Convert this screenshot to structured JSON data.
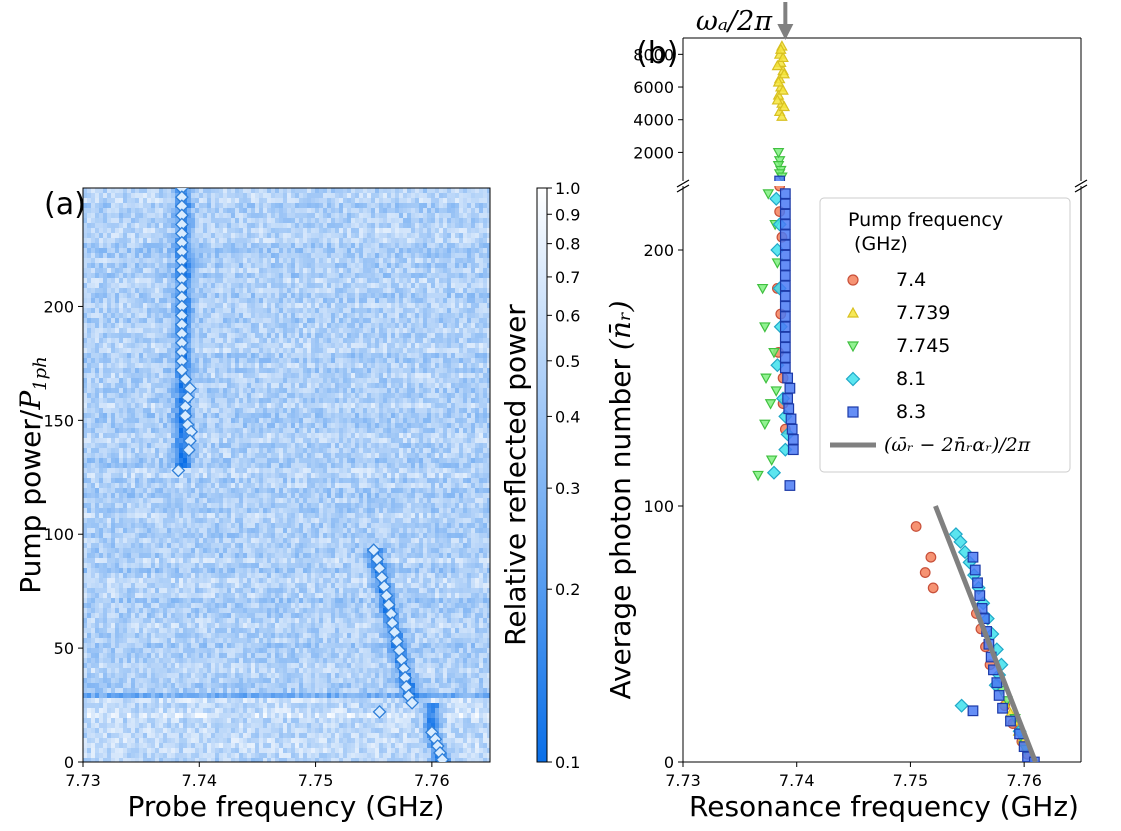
{
  "chart_data": [
    {
      "panel_label": "(a)",
      "type": "heatmap",
      "xlabel": "Probe frequency (GHz)",
      "ylabel_prefix": "Pump power/",
      "ylabel_math": "P",
      "ylabel_sub": "1ph",
      "xlim": [
        7.73,
        7.765
      ],
      "ylim": [
        0,
        252
      ],
      "xticks": [
        "7.73",
        "7.74",
        "7.75",
        "7.76"
      ],
      "xtick_values": [
        7.73,
        7.74,
        7.75,
        7.76
      ],
      "yticks": [
        "0",
        "50",
        "100",
        "150",
        "200"
      ],
      "ytick_values": [
        0,
        50,
        100,
        150,
        200
      ],
      "colorbar": {
        "label": "Relative reflected power",
        "scale": "log",
        "range": [
          0.1,
          1.0
        ],
        "ticks": [
          "0.1",
          "0.2",
          "0.3",
          "0.4",
          "0.5",
          "0.6",
          "0.7",
          "0.8",
          "0.9",
          "1.0"
        ],
        "tick_values": [
          0.1,
          0.2,
          0.3,
          0.4,
          0.5,
          0.6,
          0.7,
          0.8,
          0.9,
          1.0
        ],
        "color_low": "#0a6fe8",
        "color_high": "#ffffff"
      },
      "resonance_markers": [
        {
          "x": 7.7385,
          "y": 252
        },
        {
          "x": 7.7385,
          "y": 248
        },
        {
          "x": 7.7385,
          "y": 244
        },
        {
          "x": 7.7385,
          "y": 240
        },
        {
          "x": 7.7385,
          "y": 236
        },
        {
          "x": 7.7385,
          "y": 232
        },
        {
          "x": 7.7385,
          "y": 228
        },
        {
          "x": 7.7385,
          "y": 224
        },
        {
          "x": 7.7385,
          "y": 220
        },
        {
          "x": 7.7385,
          "y": 216
        },
        {
          "x": 7.7385,
          "y": 212
        },
        {
          "x": 7.7385,
          "y": 208
        },
        {
          "x": 7.7385,
          "y": 204
        },
        {
          "x": 7.7385,
          "y": 200
        },
        {
          "x": 7.7385,
          "y": 196
        },
        {
          "x": 7.7385,
          "y": 192
        },
        {
          "x": 7.7385,
          "y": 188
        },
        {
          "x": 7.7385,
          "y": 184
        },
        {
          "x": 7.7385,
          "y": 180
        },
        {
          "x": 7.7385,
          "y": 176
        },
        {
          "x": 7.7385,
          "y": 172
        },
        {
          "x": 7.7388,
          "y": 168
        },
        {
          "x": 7.7392,
          "y": 164
        },
        {
          "x": 7.739,
          "y": 160
        },
        {
          "x": 7.7388,
          "y": 156
        },
        {
          "x": 7.7388,
          "y": 152
        },
        {
          "x": 7.739,
          "y": 148
        },
        {
          "x": 7.7393,
          "y": 145
        },
        {
          "x": 7.7392,
          "y": 141
        },
        {
          "x": 7.7391,
          "y": 137
        },
        {
          "x": 7.7382,
          "y": 128
        },
        {
          "x": 7.755,
          "y": 93
        },
        {
          "x": 7.7553,
          "y": 89
        },
        {
          "x": 7.7555,
          "y": 85
        },
        {
          "x": 7.7557,
          "y": 81
        },
        {
          "x": 7.7559,
          "y": 77
        },
        {
          "x": 7.7561,
          "y": 73
        },
        {
          "x": 7.7563,
          "y": 69
        },
        {
          "x": 7.7565,
          "y": 65
        },
        {
          "x": 7.7566,
          "y": 61
        },
        {
          "x": 7.7568,
          "y": 57
        },
        {
          "x": 7.757,
          "y": 53
        },
        {
          "x": 7.7572,
          "y": 49
        },
        {
          "x": 7.7574,
          "y": 45
        },
        {
          "x": 7.7576,
          "y": 41
        },
        {
          "x": 7.7577,
          "y": 37
        },
        {
          "x": 7.7578,
          "y": 33
        },
        {
          "x": 7.758,
          "y": 29
        },
        {
          "x": 7.7583,
          "y": 26
        },
        {
          "x": 7.7555,
          "y": 22
        },
        {
          "x": 7.76,
          "y": 13
        },
        {
          "x": 7.7603,
          "y": 10
        },
        {
          "x": 7.7605,
          "y": 7
        },
        {
          "x": 7.7607,
          "y": 4
        },
        {
          "x": 7.7609,
          "y": 1
        }
      ]
    },
    {
      "panel_label": "(b)",
      "type": "scatter",
      "xlabel": "Resonance frequency (GHz)",
      "ylabel": "Average photon number",
      "ylabel_math": "(n̄ᵣ)",
      "xlim": [
        7.73,
        7.765
      ],
      "xticks": [
        "7.73",
        "7.74",
        "7.75",
        "7.76"
      ],
      "xtick_values": [
        7.73,
        7.74,
        7.75,
        7.76
      ],
      "upper_axis": {
        "ylim": [
          250,
          9000
        ],
        "yticks": [
          "2000",
          "4000",
          "6000",
          "8000"
        ],
        "ytick_values": [
          2000,
          4000,
          6000,
          8000
        ]
      },
      "lower_axis": {
        "ylim": [
          0,
          225
        ],
        "yticks": [
          "0",
          "100",
          "200"
        ],
        "ytick_values": [
          0,
          100,
          200
        ]
      },
      "arrow_annotation": {
        "text": "ωₐ/2π",
        "x": 7.739
      },
      "legend": {
        "title": "Pump frequency\n (GHz)",
        "location": "right"
      },
      "series": [
        {
          "name": "7.4",
          "marker": "circle",
          "color": "#f4805a",
          "edge": "#c8503a",
          "points": [
            [
              7.7385,
              225
            ],
            [
              7.7385,
              215
            ],
            [
              7.7387,
              205
            ],
            [
              7.7383,
              185
            ],
            [
              7.7386,
              175
            ],
            [
              7.7384,
              160
            ],
            [
              7.7388,
              150
            ],
            [
              7.7388,
              140
            ],
            [
              7.739,
              130
            ],
            [
              7.7505,
              92
            ],
            [
              7.7513,
              74
            ],
            [
              7.7518,
              80
            ],
            [
              7.752,
              68
            ],
            [
              7.7558,
              58
            ],
            [
              7.7562,
              52
            ],
            [
              7.7566,
              45
            ],
            [
              7.757,
              38
            ],
            [
              7.7576,
              30
            ],
            [
              7.7583,
              22
            ],
            [
              7.759,
              15
            ],
            [
              7.7598,
              8
            ],
            [
              7.7603,
              3
            ]
          ]
        },
        {
          "name": "7.739",
          "marker": "triangle-up",
          "color": "#f5e43c",
          "edge": "#d8c020",
          "points": [
            [
              7.7385,
              4500
            ],
            [
              7.7387,
              5000
            ],
            [
              7.7384,
              5500
            ],
            [
              7.7386,
              6000
            ],
            [
              7.7385,
              6500
            ],
            [
              7.7388,
              7000
            ],
            [
              7.7386,
              7500
            ],
            [
              7.7385,
              8000
            ],
            [
              7.7387,
              8500
            ],
            [
              7.7389,
              4800
            ],
            [
              7.7383,
              5200
            ],
            [
              7.7388,
              5800
            ],
            [
              7.7384,
              6300
            ],
            [
              7.7389,
              6800
            ],
            [
              7.7383,
              7300
            ],
            [
              7.7388,
              7800
            ],
            [
              7.7386,
              8300
            ],
            [
              7.7387,
              4200
            ],
            [
              7.7583,
              23
            ],
            [
              7.7588,
              19
            ],
            [
              7.7592,
              16
            ],
            [
              7.7595,
              12
            ],
            [
              7.7599,
              9
            ],
            [
              7.7602,
              6
            ]
          ]
        },
        {
          "name": "7.745",
          "marker": "triangle-down",
          "color": "#7ef07e",
          "edge": "#40c040",
          "points": [
            [
              7.7385,
              1500
            ],
            [
              7.7384,
              1200
            ],
            [
              7.7386,
              900
            ],
            [
              7.7385,
              700
            ],
            [
              7.7387,
              500
            ],
            [
              7.7384,
              2000
            ],
            [
              7.7375,
              222
            ],
            [
              7.737,
              185
            ],
            [
              7.7372,
              170
            ],
            [
              7.7373,
              150
            ],
            [
              7.7377,
              140
            ],
            [
              7.7372,
              132
            ],
            [
              7.7366,
              112
            ],
            [
              7.7378,
              118
            ],
            [
              7.7382,
              145
            ],
            [
              7.738,
              160
            ],
            [
              7.7383,
              195
            ],
            [
              7.7381,
              210
            ],
            [
              7.758,
              28
            ],
            [
              7.7585,
              24
            ],
            [
              7.7592,
              17
            ],
            [
              7.7597,
              10
            ],
            [
              7.7601,
              5
            ]
          ]
        },
        {
          "name": "8.1",
          "marker": "diamond",
          "color": "#3ee0ec",
          "edge": "#20a8c8",
          "points": [
            [
              7.7382,
              220
            ],
            [
              7.7385,
              210
            ],
            [
              7.7383,
              200
            ],
            [
              7.7385,
              185
            ],
            [
              7.7386,
              170
            ],
            [
              7.7383,
              155
            ],
            [
              7.7388,
              142
            ],
            [
              7.739,
              135
            ],
            [
              7.7392,
              128
            ],
            [
              7.739,
              122
            ],
            [
              7.738,
              113
            ],
            [
              7.754,
              89
            ],
            [
              7.7544,
              86
            ],
            [
              7.7548,
              82
            ],
            [
              7.7552,
              78
            ],
            [
              7.7556,
              73
            ],
            [
              7.756,
              68
            ],
            [
              7.7564,
              62
            ],
            [
              7.7568,
              56
            ],
            [
              7.7572,
              50
            ],
            [
              7.7576,
              44
            ],
            [
              7.758,
              38
            ],
            [
              7.7578,
              34
            ],
            [
              7.7575,
              30
            ],
            [
              7.7545,
              22
            ],
            [
              7.7596,
              12
            ]
          ]
        },
        {
          "name": "8.3",
          "marker": "square",
          "color": "#4a7af5",
          "edge": "#1c3aa8",
          "points": [
            [
              7.7385,
              250
            ],
            [
              7.739,
              222
            ],
            [
              7.739,
              218
            ],
            [
              7.739,
              214
            ],
            [
              7.739,
              210
            ],
            [
              7.739,
              206
            ],
            [
              7.739,
              202
            ],
            [
              7.739,
              198
            ],
            [
              7.739,
              194
            ],
            [
              7.739,
              190
            ],
            [
              7.739,
              186
            ],
            [
              7.739,
              182
            ],
            [
              7.739,
              178
            ],
            [
              7.739,
              174
            ],
            [
              7.739,
              170
            ],
            [
              7.739,
              166
            ],
            [
              7.739,
              162
            ],
            [
              7.739,
              158
            ],
            [
              7.739,
              154
            ],
            [
              7.7392,
              150
            ],
            [
              7.7394,
              146
            ],
            [
              7.7392,
              142
            ],
            [
              7.7393,
              138
            ],
            [
              7.7395,
              134
            ],
            [
              7.7396,
              130
            ],
            [
              7.7397,
              126
            ],
            [
              7.7397,
              122
            ],
            [
              7.7394,
              108
            ],
            [
              7.7555,
              80
            ],
            [
              7.7557,
              75
            ],
            [
              7.7559,
              70
            ],
            [
              7.7561,
              65
            ],
            [
              7.7563,
              60
            ],
            [
              7.7565,
              56
            ],
            [
              7.7567,
              51
            ],
            [
              7.7569,
              46
            ],
            [
              7.7571,
              41
            ],
            [
              7.7573,
              36
            ],
            [
              7.7576,
              31
            ],
            [
              7.7578,
              26
            ],
            [
              7.7581,
              21
            ],
            [
              7.7555,
              20
            ],
            [
              7.7588,
              16
            ],
            [
              7.7596,
              11
            ],
            [
              7.76,
              6
            ],
            [
              7.7603,
              2
            ],
            [
              7.7609,
              0
            ]
          ]
        },
        {
          "name": "(ω̄ᵣ − 2n̄ᵣαᵣ)/2π",
          "type": "line",
          "color": "#808080",
          "points": [
            [
              7.7522,
              100
            ],
            [
              7.761,
              0
            ]
          ]
        }
      ]
    }
  ]
}
